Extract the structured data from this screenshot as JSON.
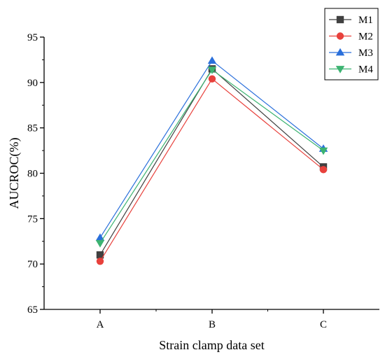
{
  "chart_data": {
    "type": "line",
    "title": "",
    "xlabel": "Strain clamp data set",
    "ylabel": "AUCROC(%)",
    "categories": [
      "A",
      "B",
      "C"
    ],
    "ylim": [
      65,
      95
    ],
    "yticks": [
      65,
      70,
      75,
      80,
      85,
      90,
      95
    ],
    "grid": false,
    "legend_position": "top-right",
    "series": [
      {
        "name": "M1",
        "marker": "square",
        "color": "#404040",
        "values": [
          71.0,
          91.5,
          80.7
        ]
      },
      {
        "name": "M2",
        "marker": "circle",
        "color": "#e8413c",
        "values": [
          70.3,
          90.4,
          80.4
        ]
      },
      {
        "name": "M3",
        "marker": "triangle-up",
        "color": "#2a6fdb",
        "values": [
          72.9,
          92.4,
          82.7
        ]
      },
      {
        "name": "M4",
        "marker": "triangle-down",
        "color": "#3cb371",
        "values": [
          72.3,
          91.4,
          82.5
        ]
      }
    ]
  }
}
